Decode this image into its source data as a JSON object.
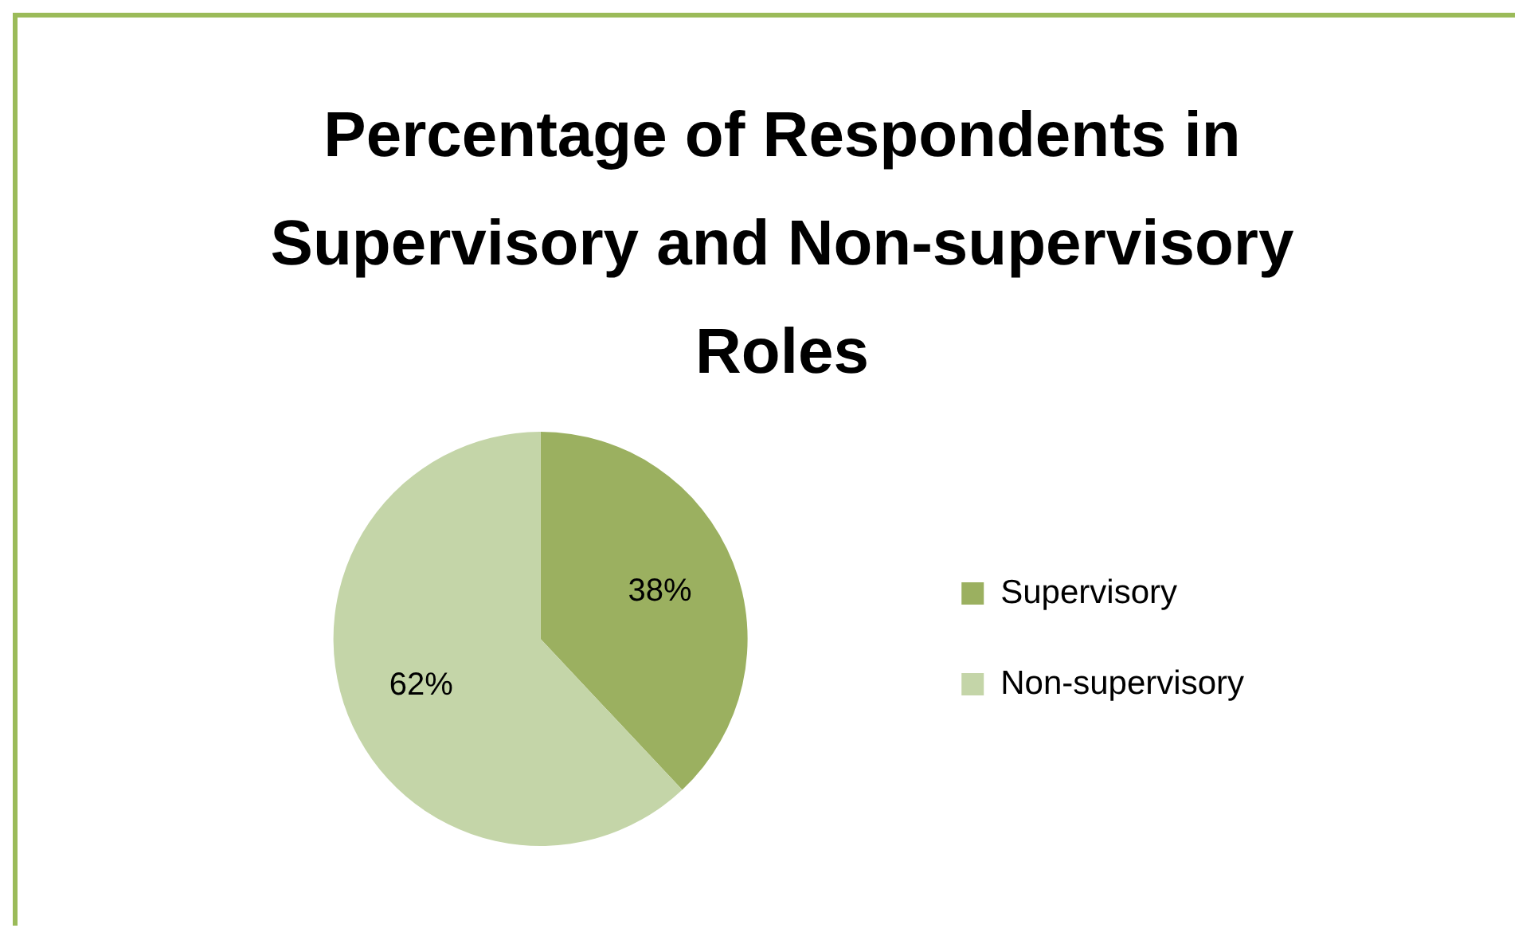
{
  "chart_data": {
    "type": "pie",
    "title": "Percentage of Respondents in Supervisory and Non-supervisory Roles",
    "categories": [
      "Supervisory",
      "Non-supervisory"
    ],
    "values": [
      38,
      62
    ],
    "colors": [
      "#9bb060",
      "#c4d5a8"
    ],
    "value_labels": [
      "38%",
      "62%"
    ],
    "legend": "right"
  }
}
